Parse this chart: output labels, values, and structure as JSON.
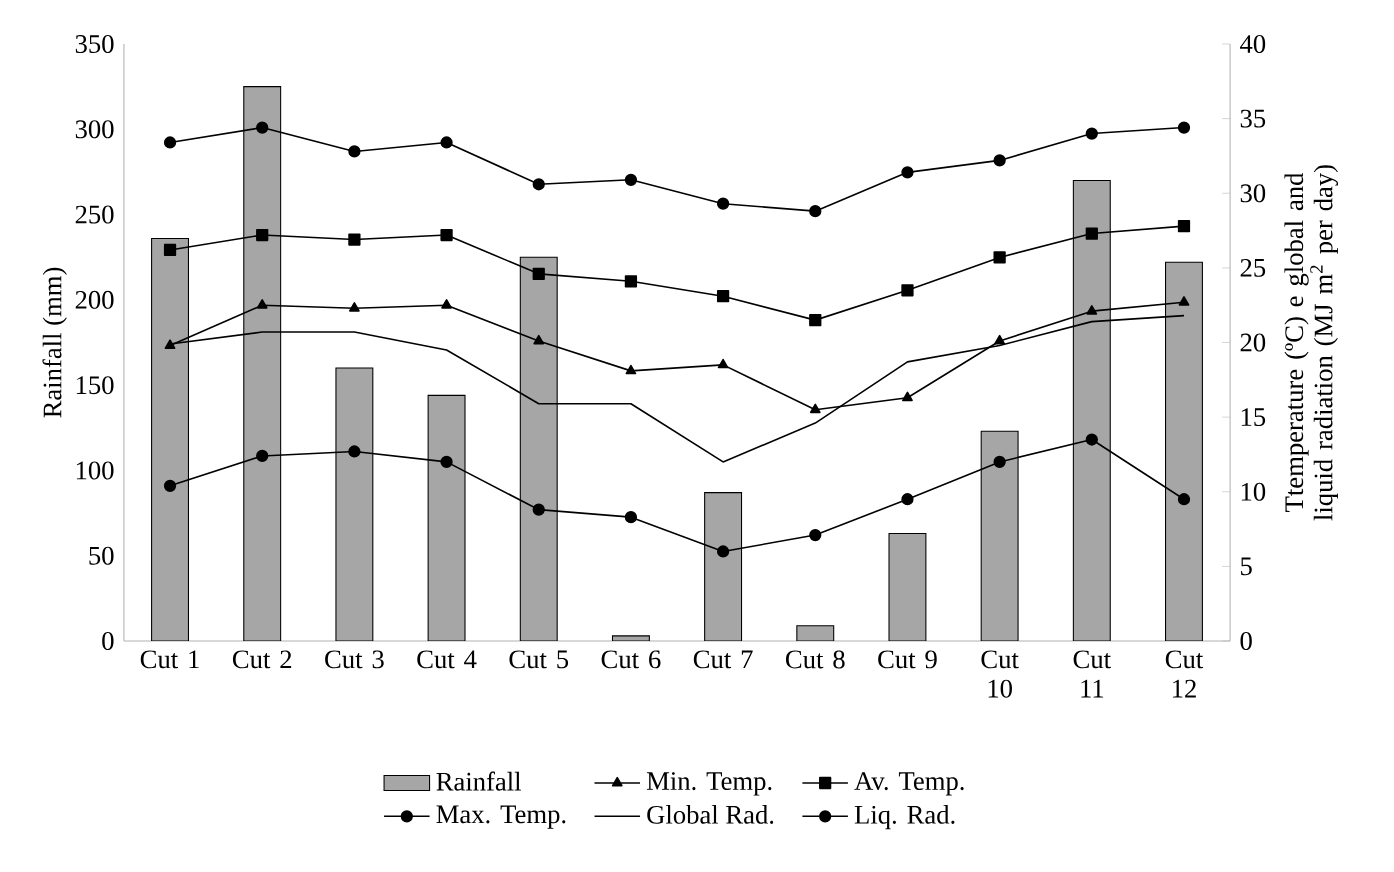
{
  "chart_data": {
    "type": "bar",
    "categories": [
      "Cut 1",
      "Cut 2",
      "Cut 3",
      "Cut 4",
      "Cut 5",
      "Cut 6",
      "Cut 7",
      "Cut 8",
      "Cut 9",
      "Cut 10",
      "Cut 11",
      "Cut 12"
    ],
    "ylabel": "Rainfall (mm)",
    "y2label": "Ttemperature (ºC) e global and liquid radiation (MJ m$^{2}$ per day)",
    "ylim": [
      0,
      350
    ],
    "yticks": [
      0,
      50,
      100,
      150,
      200,
      250,
      300,
      350
    ],
    "y2lim": [
      0,
      40
    ],
    "y2ticks": [
      0,
      5,
      10,
      15,
      20,
      25,
      30,
      35,
      40
    ],
    "legend": "bottom",
    "grid": false,
    "series": [
      {
        "name": "Rainfall",
        "color": "#a6a6a6",
        "values": [
          236,
          325,
          160,
          144,
          225,
          3,
          87,
          9,
          63,
          123,
          270,
          222
        ]
      },
      {
        "name": "Min. Temp.",
        "type": "line",
        "axis": "y2",
        "marker": "triangle",
        "color": "#000000",
        "values": [
          19.8,
          22.5,
          22.3,
          22.5,
          20.1,
          18.1,
          18.5,
          15.5,
          16.3,
          20.1,
          22.1,
          22.7
        ]
      },
      {
        "name": "Av. Temp.",
        "type": "line",
        "axis": "y2",
        "marker": "square",
        "color": "#000000",
        "values": [
          26.2,
          27.2,
          26.9,
          27.2,
          24.6,
          24.1,
          23.1,
          21.5,
          23.5,
          25.7,
          27.3,
          27.8
        ]
      },
      {
        "name": "Max. Temp.",
        "type": "line",
        "axis": "y2",
        "marker": "circle",
        "color": "#000000",
        "values": [
          33.4,
          34.4,
          32.8,
          33.4,
          30.6,
          30.9,
          29.3,
          28.8,
          31.4,
          32.2,
          34.0,
          34.4
        ]
      },
      {
        "name": "Global Rad.",
        "type": "line",
        "axis": "y2",
        "marker": "none",
        "color": "#000000",
        "values": [
          19.9,
          20.7,
          20.7,
          19.5,
          15.9,
          15.9,
          12.0,
          14.6,
          18.7,
          19.8,
          21.4,
          21.8
        ]
      },
      {
        "name": "Liq. Rad.",
        "type": "line",
        "axis": "y2",
        "marker": "circle",
        "color": "#000000",
        "values": [
          10.4,
          12.4,
          12.7,
          12.0,
          8.8,
          8.3,
          6.0,
          7.1,
          9.5,
          12.0,
          13.5,
          9.5
        ]
      }
    ]
  }
}
